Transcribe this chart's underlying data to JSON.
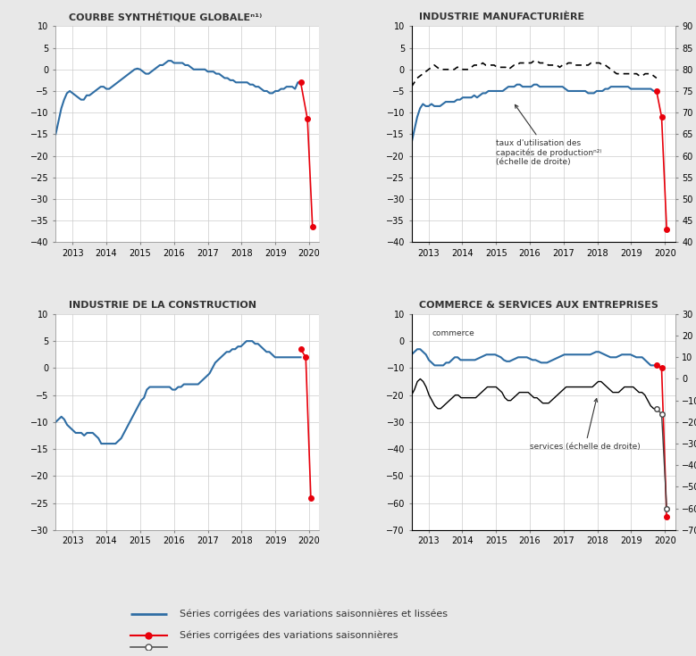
{
  "background_color": "#e8e8e8",
  "plot_bg_color": "#ffffff",
  "title1": "COURBE SYNTHÉTIQUE GLOBALEⁿ¹⁾",
  "title2": "INDUSTRIE MANUFACTURIÈRE",
  "title3": "INDUSTRIE DE LA CONSTRUCTION",
  "title4": "COMMERCE & SERVICES AUX ENTREPRISES",
  "legend1": "Séries corrigées des variations saisonnières et lissées",
  "legend2": "Séries corrigées des variations saisonnières",
  "blue_color": "#2e6da4",
  "red_color": "#e8000b",
  "dark_color": "#333333",
  "annotation_manuf": "taux d'utilisation des\ncapacités de productionⁿ²⁾\n(échelle de droite)",
  "annotation_commerce": "commerce",
  "annotation_services": "services (échelle de droite)"
}
